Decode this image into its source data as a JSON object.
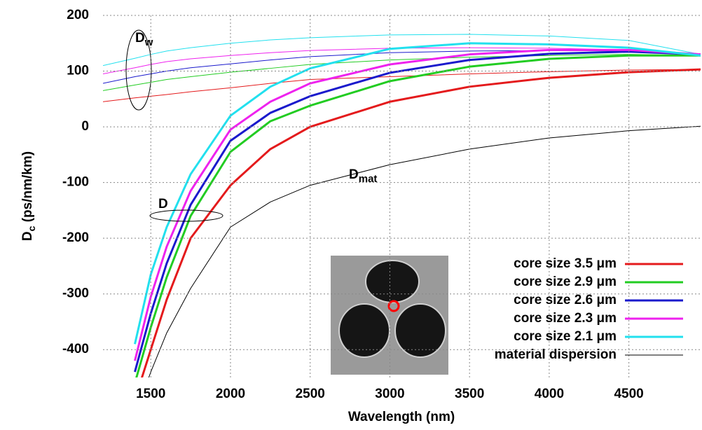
{
  "chart_data": {
    "type": "line",
    "xlabel": "Wavelength (nm)",
    "ylabel": {
      "text": "D",
      "sub": "c",
      "rest": " (ps/nm/km)"
    },
    "x": [
      1200,
      1400,
      1500,
      1600,
      1750,
      2000,
      2250,
      2500,
      3000,
      3500,
      4000,
      4500,
      4950
    ],
    "series": [
      {
        "name": "core size 3.5 μm",
        "color": "#e41a1c",
        "width": 3,
        "values": [
          null,
          -490,
          -400,
          -310,
          -200,
          -105,
          -40,
          0,
          45,
          72,
          88,
          98,
          103
        ],
        "dw_values": [
          45,
          52,
          55,
          58,
          63,
          70,
          78,
          85,
          90,
          95,
          99,
          102,
          103
        ]
      },
      {
        "name": "core size 2.9 μm",
        "color": "#22cc22",
        "width": 3,
        "values": [
          null,
          -460,
          -360,
          -270,
          -160,
          -45,
          10,
          38,
          82,
          108,
          122,
          128,
          128
        ],
        "dw_values": [
          65,
          75,
          80,
          85,
          90,
          98,
          105,
          112,
          120,
          125,
          128,
          130,
          128
        ]
      },
      {
        "name": "core size 2.6 μm",
        "color": "#1a1acc",
        "width": 3,
        "values": [
          null,
          -440,
          -335,
          -245,
          -140,
          -25,
          25,
          55,
          97,
          120,
          131,
          135,
          130
        ],
        "dw_values": [
          78,
          90,
          95,
          100,
          106,
          113,
          120,
          126,
          133,
          136,
          137,
          136,
          130
        ]
      },
      {
        "name": "core size 2.3 μm",
        "color": "#ee22ee",
        "width": 3,
        "values": [
          null,
          -420,
          -305,
          -215,
          -115,
          -5,
          45,
          78,
          112,
          130,
          138,
          138,
          130
        ],
        "dw_values": [
          95,
          106,
          112,
          117,
          122,
          128,
          133,
          137,
          141,
          142,
          141,
          138,
          130
        ]
      },
      {
        "name": "core size 2.1 μm",
        "color": "#22e0ee",
        "width": 3,
        "values": [
          null,
          -390,
          -265,
          -180,
          -85,
          20,
          72,
          105,
          140,
          150,
          148,
          142,
          128
        ],
        "dw_values": [
          110,
          123,
          130,
          136,
          142,
          150,
          156,
          160,
          165,
          166,
          163,
          155,
          130
        ]
      },
      {
        "name": "material dispersion",
        "color": "#000000",
        "width": 1,
        "values": [
          null,
          -520,
          -440,
          -370,
          -290,
          -180,
          -135,
          -105,
          -68,
          -40,
          -20,
          -7,
          1
        ]
      }
    ],
    "annotations": [
      {
        "text": "D",
        "sub": "w"
      },
      {
        "text": "D"
      },
      {
        "text": "D",
        "sub": "mat"
      }
    ],
    "xlim": [
      1200,
      4950
    ],
    "ylim": [
      -450,
      200
    ],
    "xticks": [
      1500,
      2000,
      2500,
      3000,
      3500,
      4000,
      4500
    ],
    "yticks": [
      -400,
      -300,
      -200,
      -100,
      0,
      100,
      200
    ],
    "grid": true
  }
}
